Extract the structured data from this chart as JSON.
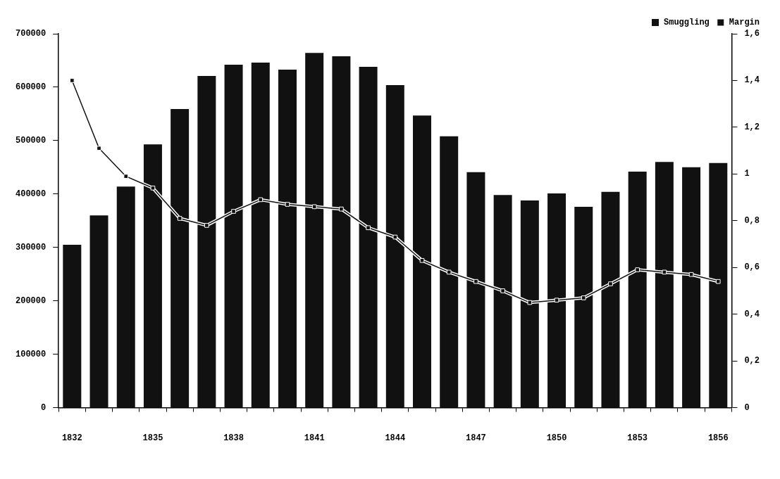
{
  "chart_data": {
    "type": "bar",
    "categories": [
      "1832",
      null,
      null,
      "1835",
      null,
      null,
      "1838",
      null,
      null,
      "1841",
      null,
      null,
      "1844",
      null,
      null,
      "1847",
      null,
      null,
      "1850",
      null,
      null,
      "1853",
      null,
      null,
      "1856"
    ],
    "series": [
      {
        "name": "Smuggling",
        "type": "bar",
        "color": "#111111",
        "values": [
          305000,
          360000,
          414000,
          493000,
          559000,
          621000,
          642000,
          646000,
          633000,
          664000,
          658000,
          638000,
          604000,
          547000,
          508000,
          441000,
          398000,
          388000,
          401000,
          376000,
          404000,
          442000,
          460000,
          450000,
          458000
        ]
      },
      {
        "name": "Margin",
        "type": "line",
        "axis": "y2",
        "color": "#111111",
        "values": [
          1.4,
          1.11,
          0.99,
          0.94,
          0.81,
          0.78,
          0.84,
          0.89,
          0.87,
          0.86,
          0.85,
          0.77,
          0.73,
          0.63,
          0.58,
          0.54,
          0.5,
          0.45,
          0.46,
          0.47,
          0.53,
          0.59,
          0.58,
          0.57,
          0.54
        ]
      }
    ],
    "ylim": [
      0,
      700000
    ],
    "yticks": [
      0,
      100000,
      200000,
      300000,
      400000,
      500000,
      600000,
      700000
    ],
    "y2lim": [
      0,
      1.6
    ],
    "y2ticks": [
      0,
      {
        "value": 0.2,
        "label": "0,2"
      },
      {
        "value": 0.4,
        "label": "0,4"
      },
      {
        "value": 0.6,
        "label": "0,6"
      },
      {
        "value": 0.8,
        "label": "0,8"
      },
      1,
      {
        "value": 1.2,
        "label": "1,2"
      },
      {
        "value": 1.4,
        "label": "1,4"
      },
      {
        "value": 1.6,
        "label": "1,6"
      }
    ],
    "legend": "top right",
    "marker": "square",
    "grid": false
  }
}
